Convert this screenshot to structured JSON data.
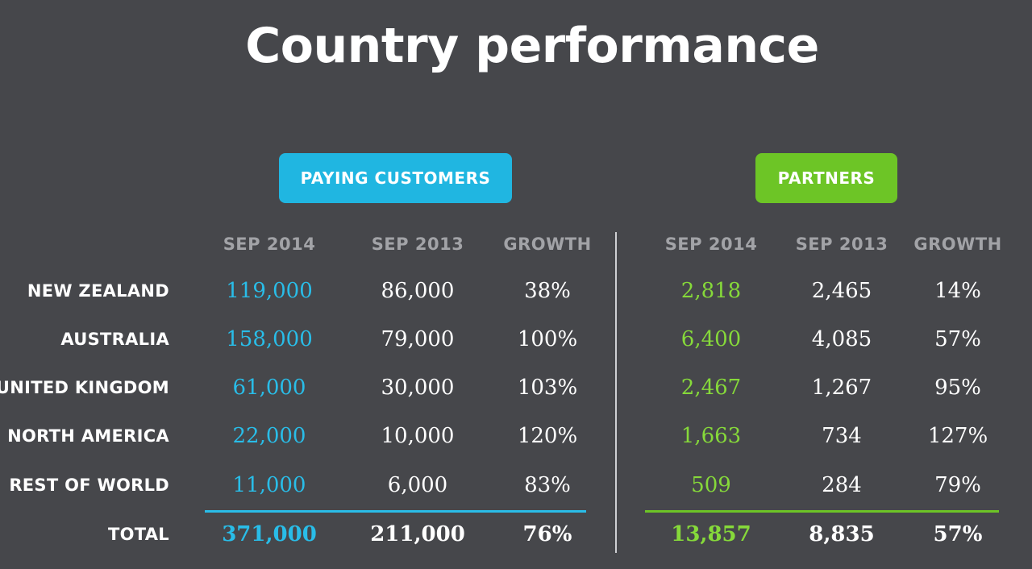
{
  "title": "Country performance",
  "customers": {
    "badge": "PAYING CUSTOMERS",
    "headers": [
      "SEP 2014",
      "SEP 2013",
      "GROWTH"
    ],
    "rows": [
      {
        "sep2014": "119,000",
        "sep2013": "86,000",
        "growth": "38%"
      },
      {
        "sep2014": "158,000",
        "sep2013": "79,000",
        "growth": "100%"
      },
      {
        "sep2014": "61,000",
        "sep2013": "30,000",
        "growth": "103%"
      },
      {
        "sep2014": "22,000",
        "sep2013": "10,000",
        "growth": "120%"
      },
      {
        "sep2014": "11,000",
        "sep2013": "6,000",
        "growth": "83%"
      }
    ],
    "total": {
      "sep2014": "371,000",
      "sep2013": "211,000",
      "growth": "76%"
    }
  },
  "partners": {
    "badge": "PARTNERS",
    "headers": [
      "SEP 2014",
      "SEP 2013",
      "GROWTH"
    ],
    "rows": [
      {
        "sep2014": "2,818",
        "sep2013": "2,465",
        "growth": "14%"
      },
      {
        "sep2014": "6,400",
        "sep2013": "4,085",
        "growth": "57%"
      },
      {
        "sep2014": "2,467",
        "sep2013": "1,267",
        "growth": "95%"
      },
      {
        "sep2014": "1,663",
        "sep2013": "734",
        "growth": "127%"
      },
      {
        "sep2014": "509",
        "sep2013": "284",
        "growth": "79%"
      }
    ],
    "total": {
      "sep2014": "13,857",
      "sep2013": "8,835",
      "growth": "57%"
    }
  },
  "row_labels": [
    "NEW ZEALAND",
    "AUSTRALIA",
    "UNITED KINGDOM",
    "NORTH AMERICA",
    "REST OF WORLD"
  ],
  "total_label": "TOTAL",
  "colors": {
    "background": "#46474b",
    "customers_accent": "#29bde8",
    "partners_accent": "#6dc526",
    "header_text": "#a2a3a7"
  }
}
